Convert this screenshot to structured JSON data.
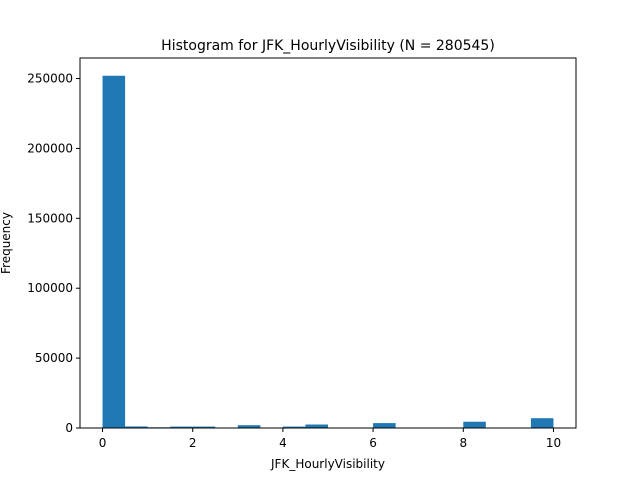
{
  "chart_data": {
    "type": "bar",
    "title": "Histogram for JFK_HourlyVisibility (N = 280545)",
    "xlabel": "JFK_HourlyVisibility",
    "ylabel": "Frequency",
    "xlim": [
      -0.5,
      10.5
    ],
    "ylim": [
      0,
      264700
    ],
    "bin_edges": [
      0.0,
      0.5,
      1.0,
      1.5,
      2.0,
      2.5,
      3.0,
      3.5,
      4.0,
      4.5,
      5.0,
      5.5,
      6.0,
      6.5,
      7.0,
      7.5,
      8.0,
      8.5,
      9.0,
      9.5,
      10.0
    ],
    "values": [
      252000,
      1100,
      500,
      1000,
      1000,
      0,
      2000,
      0,
      1000,
      2500,
      0,
      0,
      3500,
      0,
      0,
      0,
      4500,
      0,
      0,
      7000
    ],
    "xticks": [
      0,
      2,
      4,
      6,
      8,
      10
    ],
    "xtick_labels": [
      "0",
      "2",
      "4",
      "6",
      "8",
      "10"
    ],
    "yticks": [
      0,
      50000,
      100000,
      150000,
      200000,
      250000
    ],
    "ytick_labels": [
      "0",
      "50000",
      "100000",
      "150000",
      "200000",
      "250000"
    ],
    "grid": false,
    "bar_color": "#1f77b4"
  }
}
